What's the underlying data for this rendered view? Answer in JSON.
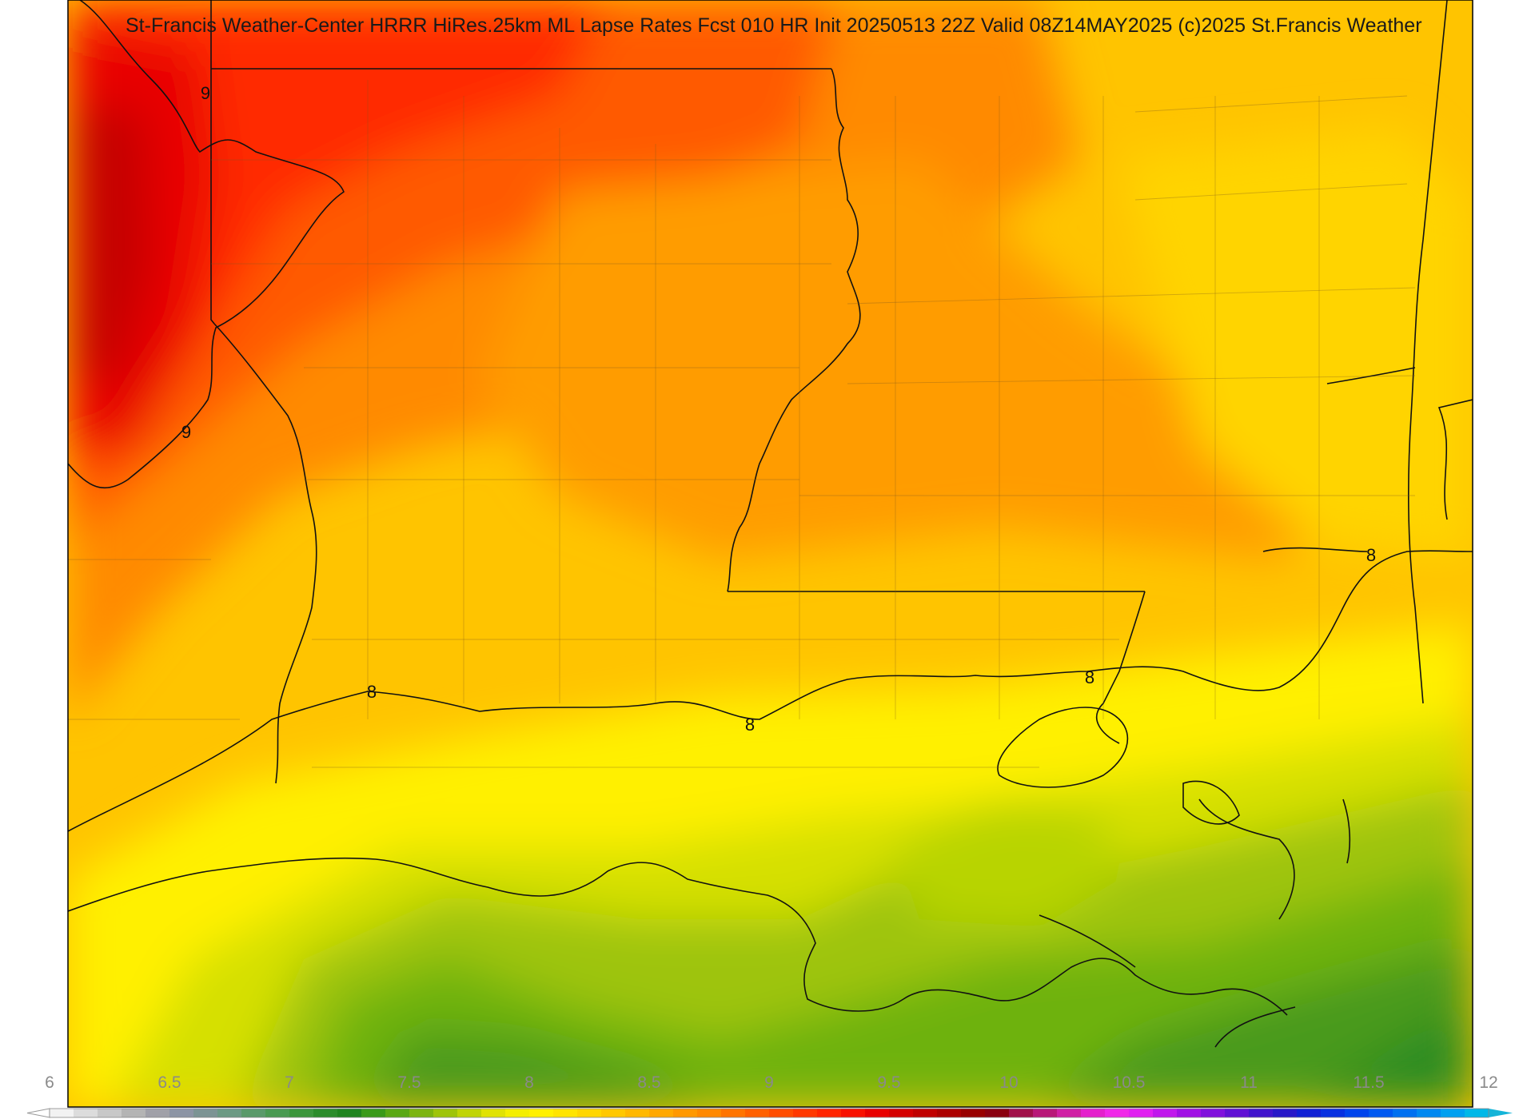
{
  "title": "St-Francis Weather-Center HRRR HiRes.25km ML Lapse Rates  Fcst 010 HR Init 20250513 22Z  Valid 08Z14MAY2025    (c)2025 St.Francis Weather",
  "field": {
    "contour_labels": [
      "9",
      "9",
      "8",
      "8",
      "8",
      "8"
    ]
  },
  "colorbar": {
    "ticks": [
      "6",
      "6.5",
      "7",
      "7.5",
      "8",
      "8.5",
      "9",
      "9.5",
      "10",
      "10.5",
      "11",
      "11.5",
      "12"
    ],
    "colors": [
      "#f2f2f2",
      "#dcdcdc",
      "#c8c8c8",
      "#b4b4b4",
      "#a0a0a8",
      "#8c94a4",
      "#7c9494",
      "#6c9a84",
      "#5a9a6a",
      "#4a9a52",
      "#3c963c",
      "#2c8c2c",
      "#208420",
      "#3a9a1a",
      "#5aa814",
      "#7cb410",
      "#9ec40a",
      "#c0d406",
      "#e0e204",
      "#f4ee00",
      "#fff000",
      "#ffe400",
      "#ffd600",
      "#ffc800",
      "#ffb800",
      "#ffa800",
      "#ff9800",
      "#ff8800",
      "#ff7400",
      "#ff6000",
      "#ff4c00",
      "#ff3800",
      "#ff2400",
      "#f81000",
      "#e80000",
      "#d40000",
      "#c00000",
      "#ac0000",
      "#980000",
      "#8a0010",
      "#a0104a",
      "#b81878",
      "#d020a4",
      "#e420cc",
      "#f028e8",
      "#e020f0",
      "#c018ec",
      "#a010e4",
      "#8010dc",
      "#6010d4",
      "#4014cc",
      "#2818c8",
      "#1020d4",
      "#0830e0",
      "#0044ec",
      "#0058f0",
      "#0070f0",
      "#0088f0",
      "#00a0f0",
      "#00b8e8"
    ]
  }
}
